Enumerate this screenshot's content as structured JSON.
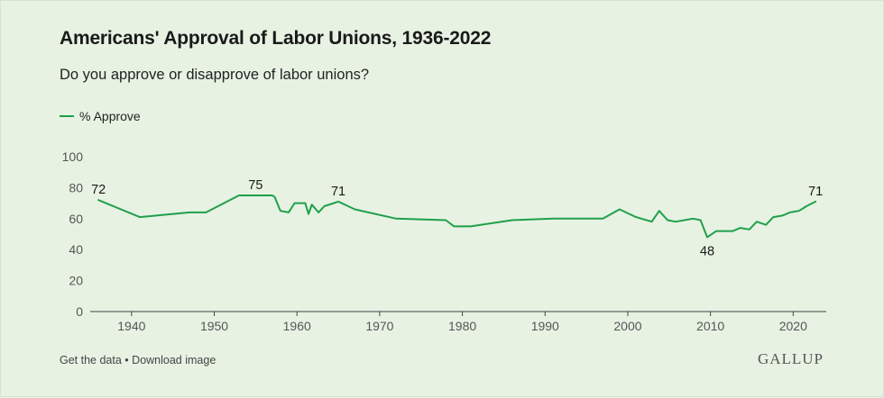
{
  "header": {
    "title": "Americans' Approval of Labor Unions, 1936-2022",
    "subtitle": "Do you approve or disapprove of labor unions?"
  },
  "legend": {
    "label": "% Approve",
    "color": "#1fa04a"
  },
  "footer": {
    "get_data": "Get the data",
    "separator": "•",
    "download": "Download image",
    "brand": "GALLUP"
  },
  "chart_data": {
    "type": "line",
    "title": "Americans' Approval of Labor Unions, 1936-2022",
    "subtitle": "Do you approve or disapprove of labor unions?",
    "xlabel": "",
    "ylabel": "",
    "xlim": [
      1935,
      2024
    ],
    "ylim": [
      0,
      100
    ],
    "yticks": [
      0,
      20,
      40,
      60,
      80,
      100
    ],
    "xticks": [
      1940,
      1950,
      1960,
      1970,
      1980,
      1990,
      2000,
      2010,
      2020
    ],
    "grid": false,
    "legend_position": "top-left",
    "series": [
      {
        "name": "% Approve",
        "color": "#1fa04a",
        "x": [
          1936,
          1941,
          1947,
          1949,
          1953,
          1957,
          1957.3,
          1958,
          1959,
          1959.7,
          1961,
          1961.4,
          1961.8,
          1962.6,
          1963.3,
          1965,
          1967,
          1972,
          1978,
          1979,
          1981,
          1986,
          1991,
          1997,
          1999,
          2001,
          2002.9,
          2003.8,
          2004.8,
          2005.8,
          2007.9,
          2008.8,
          2009.6,
          2010.7,
          2012.7,
          2013.6,
          2014.7,
          2015.6,
          2016.7,
          2017.6,
          2018.7,
          2019.6,
          2020.7,
          2021.6,
          2022.7
        ],
        "values": [
          72,
          61,
          64,
          64,
          75,
          75,
          74,
          65,
          64,
          70,
          70,
          63,
          69,
          64,
          68,
          71,
          66,
          60,
          59,
          55,
          55,
          59,
          60,
          60,
          66,
          61,
          58,
          65,
          59,
          58,
          60,
          59,
          48,
          52,
          52,
          54,
          53,
          58,
          56,
          61,
          62,
          64,
          65,
          68,
          71
        ]
      }
    ],
    "annotations": [
      {
        "x": 1936,
        "y": 72,
        "text": "72"
      },
      {
        "x": 1955,
        "y": 75,
        "text": "75"
      },
      {
        "x": 1965,
        "y": 71,
        "text": "71"
      },
      {
        "x": 2009.6,
        "y": 48,
        "text": "48"
      },
      {
        "x": 2022.7,
        "y": 71,
        "text": "71"
      }
    ]
  }
}
